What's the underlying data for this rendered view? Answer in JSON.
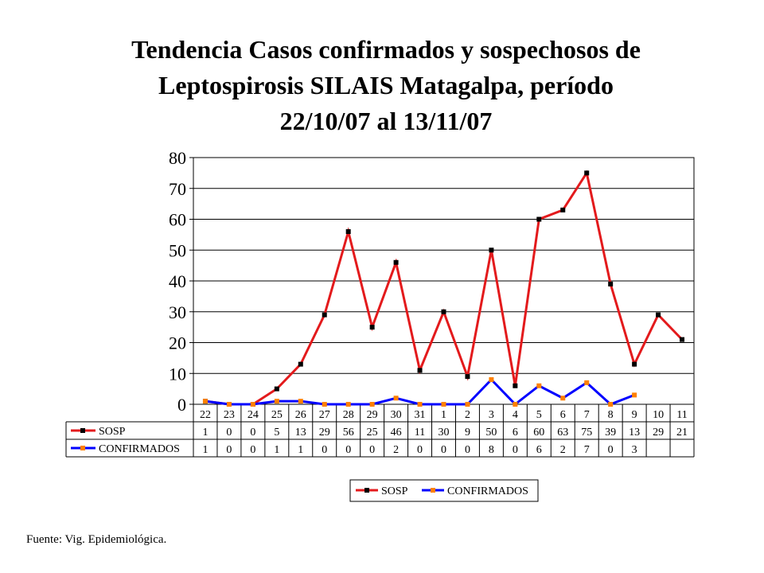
{
  "title": {
    "line1": "Tendencia Casos confirmados y sospechosos de",
    "line2": "Leptospirosis  SILAIS  Matagalpa, período",
    "line3": "22/10/07 al 13/11/07"
  },
  "source": "Fuente: Vig. Epidemiológica.",
  "chart_data": {
    "type": "line",
    "categories": [
      "22",
      "23",
      "24",
      "25",
      "26",
      "27",
      "28",
      "29",
      "30",
      "31",
      "1",
      "2",
      "3",
      "4",
      "5",
      "6",
      "7",
      "8",
      "9",
      "10",
      "11"
    ],
    "ylim": [
      0,
      80
    ],
    "yticks": [
      0,
      10,
      20,
      30,
      40,
      50,
      60,
      70,
      80
    ],
    "grid": true,
    "legend_position": "bottom",
    "data_table": true,
    "series": [
      {
        "name": "SOSP",
        "color": "#e31a1c",
        "marker_color": "#000000",
        "values": [
          1,
          0,
          0,
          5,
          13,
          29,
          56,
          25,
          46,
          11,
          30,
          9,
          50,
          6,
          60,
          63,
          75,
          39,
          13,
          29,
          21
        ]
      },
      {
        "name": "CONFIRMADOS",
        "color": "#0000ff",
        "marker_color": "#ff8000",
        "values": [
          1,
          0,
          0,
          1,
          1,
          0,
          0,
          0,
          2,
          0,
          0,
          0,
          8,
          0,
          6,
          2,
          7,
          0,
          3,
          null,
          null
        ]
      }
    ]
  }
}
